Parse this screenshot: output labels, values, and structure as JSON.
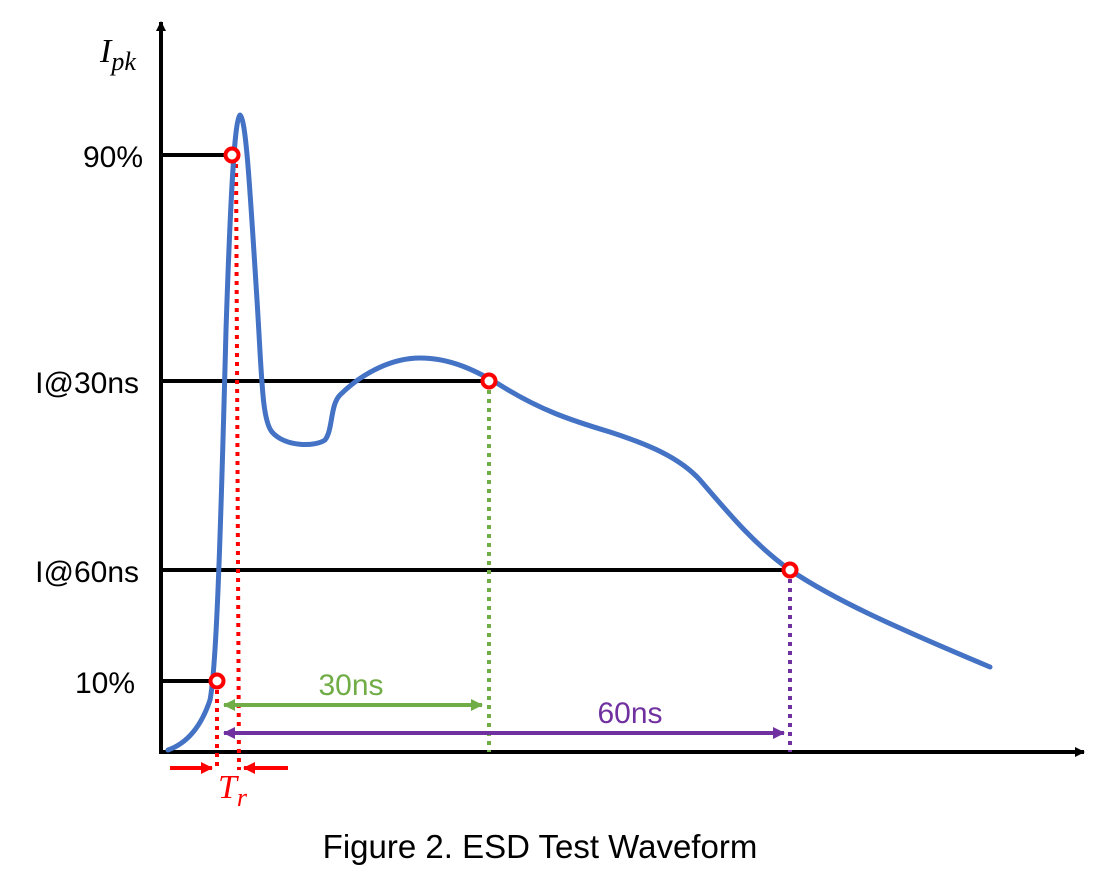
{
  "figure": {
    "caption": "Figure 2. ESD Test Waveform",
    "y_axis_label_main": "I",
    "y_axis_label_sub": "pk",
    "levels": [
      {
        "key": "p90",
        "label": "90%"
      },
      {
        "key": "i30",
        "label": "I@30ns"
      },
      {
        "key": "i60",
        "label": "I@60ns"
      },
      {
        "key": "p10",
        "label": "10%"
      }
    ],
    "intervals": [
      {
        "key": "t30",
        "label": "30ns"
      },
      {
        "key": "t60",
        "label": "60ns"
      }
    ],
    "rise_time_main": "T",
    "rise_time_sub": "r"
  },
  "colors": {
    "waveform": "#4472C4",
    "axis": "#000000",
    "rise": "#FF0000",
    "interval_30ns": "#70AD47",
    "interval_60ns": "#7030A0",
    "marker_fill": "#FFFFFF"
  }
}
